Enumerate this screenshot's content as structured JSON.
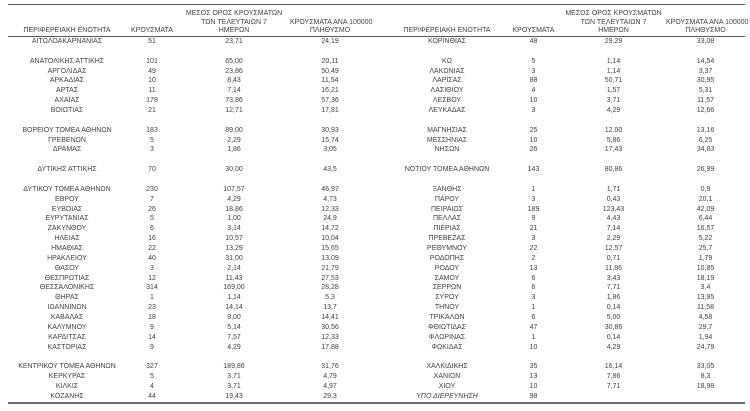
{
  "document": {
    "type": "regional-covid-cases-table",
    "language": "el"
  },
  "colors": {
    "text": "#3f3f3f",
    "header_border": "#595959",
    "bottom_border": "#6b6b6b",
    "background": "#ffffff"
  },
  "table": {
    "header": {
      "col_region": "ΠΕΡΙΦΕΡΕΙΑΚΗ ΕΝΟΤΗΤΑ",
      "col_cases": "ΚΡΟΥΣΜΑΤΑ",
      "col_avg7_lines": [
        "ΜΕΣΟΣ ΟΡΟΣ ΚΡΟΥΣΜΑΤΩΝ",
        "ΤΩΝ ΤΕΛΕΥΤΑΙΩΝ 7",
        "ΗΜΕΡΩΝ"
      ],
      "col_per100k_lines": [
        "ΚΡΟΥΣΜΑΤΑ ΑΝΑ 100000",
        "ΠΛΗΘΥΣΜΟ"
      ]
    },
    "rows": [
      {
        "left": [
          "ΑΙΤΩΛΟΑΚΑΡΝΑΝΙΑΣ",
          "51",
          "23,71",
          "24,19"
        ],
        "right": [
          "ΚΟΡΙΝΘΙΑΣ",
          "48",
          "29,29",
          "33,08"
        ]
      },
      {
        "blank": true,
        "left": [
          "",
          "",
          "",
          ""
        ],
        "right": [
          "",
          "",
          "",
          ""
        ]
      },
      {
        "left": [
          "ΑΝΑΤΟΛΙΚΗΣ ΑΤΤΙΚΗΣ",
          "101",
          "65,00",
          "20,11"
        ],
        "right": [
          "ΚΩ",
          "5",
          "1,14",
          "14,54"
        ]
      },
      {
        "left": [
          "ΑΡΓΟΛΙΔΑΣ",
          "49",
          "23,86",
          "50,49"
        ],
        "right": [
          "ΛΑΚΩΝΙΑΣ",
          "3",
          "1,14",
          "3,37"
        ]
      },
      {
        "left": [
          "ΑΡΚΑΔΙΑΣ",
          "10",
          "8,43",
          "11,54"
        ],
        "right": [
          "ΛΑΡΙΣΑΣ",
          "88",
          "50,71",
          "30,95"
        ]
      },
      {
        "left": [
          "ΑΡΤΑΣ",
          "11",
          "7,14",
          "16,21"
        ],
        "right": [
          "ΛΑΣΙΘΙΟΥ",
          "4",
          "1,57",
          "5,31"
        ]
      },
      {
        "left": [
          "ΑΧΑΪΑΣ",
          "178",
          "73,86",
          "57,36"
        ],
        "right": [
          "ΛΕΣΒΟΥ",
          "10",
          "3,71",
          "11,57"
        ]
      },
      {
        "left": [
          "ΒΟΙΩΤΙΑΣ",
          "21",
          "12,71",
          "17,81"
        ],
        "right": [
          "ΛΕΥΚΑΔΑΣ",
          "3",
          "4,29",
          "12,66"
        ]
      },
      {
        "blank": true,
        "left": [
          "",
          "",
          "",
          ""
        ],
        "right": [
          "",
          "",
          "",
          ""
        ]
      },
      {
        "left": [
          "ΒΟΡΕΙΟΥ ΤΟΜΕΑ ΑΘΗΝΩΝ",
          "183",
          "89,00",
          "30,93"
        ],
        "right": [
          "ΜΑΓΝΗΣΙΑΣ",
          "25",
          "12,00",
          "13,16"
        ]
      },
      {
        "left": [
          "ΓΡΕΒΕΝΩΝ",
          "5",
          "2,29",
          "15,74"
        ],
        "right": [
          "ΜΕΣΣΗΝΙΑΣ",
          "10",
          "5,86",
          "6,25"
        ]
      },
      {
        "left": [
          "ΔΡΑΜΑΣ",
          "3",
          "1,86",
          "3,05"
        ],
        "right": [
          "ΝΗΣΩΝ",
          "26",
          "17,43",
          "34,83"
        ]
      },
      {
        "blank": true,
        "left": [
          "",
          "",
          "",
          ""
        ],
        "right": [
          "",
          "",
          "",
          ""
        ]
      },
      {
        "left": [
          "ΔΥΤΙΚΗΣ ΑΤΤΙΚΗΣ",
          "70",
          "30,00",
          "43,5"
        ],
        "right": [
          "ΝΟΤΙΟΥ ΤΟΜΕΑ ΑΘΗΝΩΝ",
          "143",
          "80,86",
          "26,99"
        ]
      },
      {
        "blank": true,
        "left": [
          "",
          "",
          "",
          ""
        ],
        "right": [
          "",
          "",
          "",
          ""
        ]
      },
      {
        "left": [
          "ΔΥΤΙΚΟΥ ΤΟΜΕΑ ΑΘΗΝΩΝ",
          "230",
          "107,57",
          "46,97"
        ],
        "right": [
          "ΞΑΝΘΗΣ",
          "1",
          "1,71",
          "0,9"
        ]
      },
      {
        "left": [
          "ΕΒΡΟΥ",
          "7",
          "4,29",
          "4,73"
        ],
        "right": [
          "ΠΑΡΟΥ",
          "3",
          "0,43",
          "20,1"
        ]
      },
      {
        "left": [
          "ΕΥΒΟΙΑΣ",
          "26",
          "18,86",
          "12,33"
        ],
        "right": [
          "ΠΕΙΡΑΙΩΣ",
          "189",
          "123,43",
          "42,09"
        ]
      },
      {
        "left": [
          "ΕΥΡΥΤΑΝΙΑΣ",
          "5",
          "1,00",
          "24,9"
        ],
        "right": [
          "ΠΕΛΛΑΣ",
          "9",
          "4,43",
          "6,44"
        ]
      },
      {
        "left": [
          "ΖΑΚΥΝΘΟΥ",
          "6",
          "3,14",
          "14,72"
        ],
        "right": [
          "ΠΙΕΡΙΑΣ",
          "21",
          "7,14",
          "16,57"
        ]
      },
      {
        "left": [
          "ΗΛΕΙΑΣ",
          "16",
          "10,57",
          "10,04"
        ],
        "right": [
          "ΠΡΕΒΕΖΑΣ",
          "3",
          "2,29",
          "5,22"
        ]
      },
      {
        "left": [
          "ΗΜΑΘΙΑΣ",
          "22",
          "13,29",
          "15,65"
        ],
        "right": [
          "ΡΕΘΥΜΝΟΥ",
          "22",
          "12,57",
          "25,7"
        ]
      },
      {
        "left": [
          "ΗΡΑΚΛΕΙΟΥ",
          "40",
          "31,00",
          "13,09"
        ],
        "right": [
          "ΡΟΔΟΠΗΣ",
          "2",
          "0,71",
          "1,79"
        ]
      },
      {
        "left": [
          "ΘΑΣΟΥ",
          "3",
          "2,14",
          "21,79"
        ],
        "right": [
          "ΡΟΔΟΥ",
          "13",
          "11,86",
          "10,85"
        ]
      },
      {
        "left": [
          "ΘΕΣΠΡΩΤΙΑΣ",
          "12",
          "11,43",
          "27,53"
        ],
        "right": [
          "ΣΑΜΟΥ",
          "6",
          "3,43",
          "18,19"
        ]
      },
      {
        "left": [
          "ΘΕΣΣΑΛΟΝΙΚΗΣ",
          "314",
          "169,00",
          "28,28"
        ],
        "right": [
          "ΣΕΡΡΩΝ",
          "6",
          "7,71",
          "3,4"
        ]
      },
      {
        "left": [
          "ΘΗΡΑΣ",
          "1",
          "1,14",
          "5,3"
        ],
        "right": [
          "ΣΥΡΟΥ",
          "3",
          "1,86",
          "13,95"
        ]
      },
      {
        "left": [
          "ΙΩΑΝΝΙΝΩΝ",
          "23",
          "14,14",
          "13,7"
        ],
        "right": [
          "ΤΗΝΟΥ",
          "1",
          "0,14",
          "11,58"
        ]
      },
      {
        "left": [
          "ΚΑΒΑΛΑΣ",
          "18",
          "9,00",
          "14,41"
        ],
        "right": [
          "ΤΡΙΚΑΛΩΝ",
          "6",
          "5,00",
          "4,58"
        ]
      },
      {
        "left": [
          "ΚΑΛΥΜΝΟΥ",
          "9",
          "5,14",
          "30,56"
        ],
        "right": [
          "ΦΘΙΩΤΙΔΑΣ",
          "47",
          "30,86",
          "29,7"
        ]
      },
      {
        "left": [
          "ΚΑΡΔΙΤΣΑΣ",
          "14",
          "7,57",
          "12,33"
        ],
        "right": [
          "ΦΛΩΡΙΝΑΣ",
          "1",
          "0,14",
          "1,94"
        ]
      },
      {
        "left": [
          "ΚΑΣΤΟΡΙΑΣ",
          "9",
          "4,29",
          "17,88"
        ],
        "right": [
          "ΦΩΚΙΔΑΣ",
          "10",
          "4,29",
          "24,79"
        ]
      },
      {
        "blank": true,
        "left": [
          "",
          "",
          "",
          ""
        ],
        "right": [
          "",
          "",
          "",
          ""
        ]
      },
      {
        "left": [
          "ΚΕΝΤΡΙΚΟΥ ΤΟΜΕΑ ΑΘΗΝΩΝ",
          "327",
          "189,86",
          "31,76"
        ],
        "right": [
          "ΧΑΛΚΙΔΙΚΗΣ",
          "35",
          "16,14",
          "33,05"
        ]
      },
      {
        "left": [
          "ΚΕΡΚΥΡΑΣ",
          "5",
          "3,71",
          "4,79"
        ],
        "right": [
          "ΧΑΝΙΩΝ",
          "13",
          "7,86",
          "8,3"
        ]
      },
      {
        "left": [
          "ΚΙΛΚΙΣ",
          "4",
          "3,71",
          "4,97"
        ],
        "right": [
          "ΧΙΟΥ",
          "10",
          "7,71",
          "18,98"
        ]
      },
      {
        "left": [
          "ΚΟΖΑΝΗΣ",
          "44",
          "19,43",
          "29,3"
        ],
        "right": [
          "ΥΠΟ ΔΙΕΡΕΥΝΗΣΗ",
          "98",
          "",
          ""
        ],
        "right_italic": true
      }
    ]
  }
}
